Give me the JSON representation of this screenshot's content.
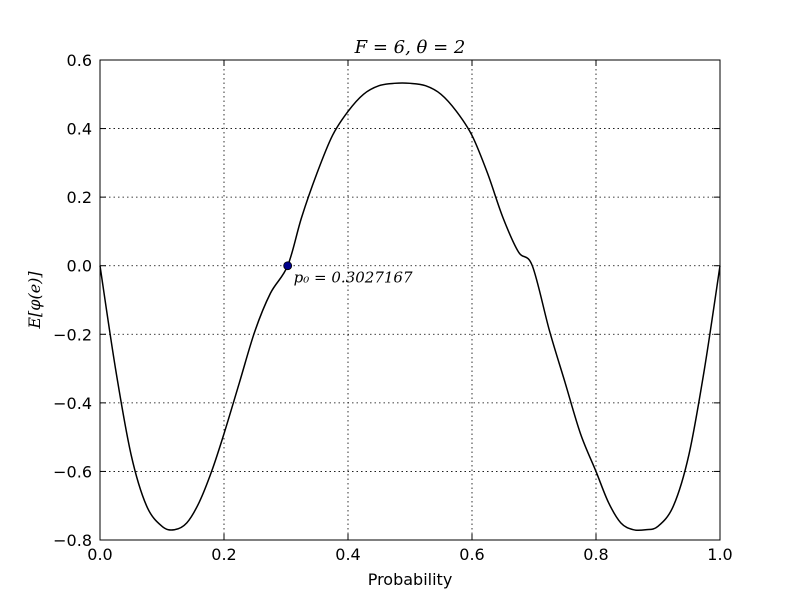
{
  "chart_data": {
    "type": "line",
    "title": "F = 6,  θ = 2",
    "xlabel": "Probability",
    "ylabel": "E[φ(e)]",
    "xlim": [
      0.0,
      1.0
    ],
    "ylim": [
      -0.8,
      0.6
    ],
    "xticks": [
      "0.0",
      "0.2",
      "0.4",
      "0.6",
      "0.8",
      "1.0"
    ],
    "yticks": [
      "0.6",
      "0.4",
      "0.2",
      "0.0",
      "−0.2",
      "−0.4",
      "−0.6",
      "−0.8"
    ],
    "grid": true,
    "series": [
      {
        "color": "#000000",
        "x": [
          0.0,
          0.025,
          0.05,
          0.075,
          0.1,
          0.12,
          0.14,
          0.16,
          0.18,
          0.2,
          0.225,
          0.25,
          0.275,
          0.3027167,
          0.325,
          0.35,
          0.375,
          0.4,
          0.425,
          0.45,
          0.475,
          0.5,
          0.525,
          0.55,
          0.575,
          0.6,
          0.625,
          0.65,
          0.675,
          0.6972833,
          0.725,
          0.75,
          0.775,
          0.8,
          0.82,
          0.84,
          0.86,
          0.88,
          0.9,
          0.925,
          0.95,
          0.975,
          1.0
        ],
        "y": [
          0.0,
          -0.3,
          -0.55,
          -0.7,
          -0.76,
          -0.77,
          -0.75,
          -0.69,
          -0.6,
          -0.49,
          -0.34,
          -0.19,
          -0.08,
          0.0,
          0.14,
          0.27,
          0.38,
          0.45,
          0.5,
          0.525,
          0.532,
          0.532,
          0.525,
          0.5,
          0.45,
          0.38,
          0.27,
          0.14,
          0.04,
          0.0,
          -0.19,
          -0.34,
          -0.49,
          -0.6,
          -0.69,
          -0.75,
          -0.77,
          -0.77,
          -0.76,
          -0.7,
          -0.55,
          -0.3,
          0.0
        ]
      }
    ],
    "marker": {
      "x": 0.3027167,
      "y": 0.0,
      "color": "#00008B",
      "label": "p₀ = 0.3027167"
    }
  }
}
